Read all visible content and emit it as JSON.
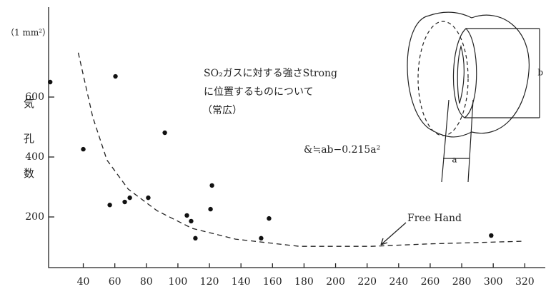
{
  "chart_data": {
    "type": "scatter",
    "ylabel": "気孔数",
    "yunit": "（1 mm²）",
    "annotations": [
      "SO₂ガスに対する強さStrong",
      "に位置するものについて",
      "（常広）",
      "&≒ab−0.215a²"
    ],
    "curve_label": "Free Hand",
    "diagram_labels": [
      "a",
      "b"
    ],
    "xlim": [
      18,
      333
    ],
    "ylim": [
      31,
      900
    ],
    "xticks": [
      40,
      60,
      80,
      100,
      120,
      140,
      160,
      180,
      200,
      220,
      240,
      260,
      280,
      300,
      320
    ],
    "yticks": [
      200,
      400,
      600
    ],
    "series": [
      {
        "style": "points",
        "color": "#111111",
        "x": [
          19,
          40,
          60.4,
          56.8,
          66.3,
          69.5,
          81.2,
          91.7,
          105.7,
          108.4,
          111.1,
          120.7,
          121.6,
          152.8,
          157.8,
          298.7
        ],
        "values": [
          650,
          426,
          669,
          240,
          250,
          264,
          264,
          481,
          205,
          186,
          129,
          226,
          305,
          129,
          195,
          138
        ]
      },
      {
        "style": "dashed",
        "color": "#222222",
        "x": [
          36.8,
          46,
          55,
          68.5,
          86.7,
          109,
          136.5,
          177,
          222.6,
          258.8,
          320
        ],
        "values": [
          748,
          533,
          390,
          293,
          221,
          162,
          126,
          102,
          102,
          110,
          119
        ]
      }
    ]
  }
}
